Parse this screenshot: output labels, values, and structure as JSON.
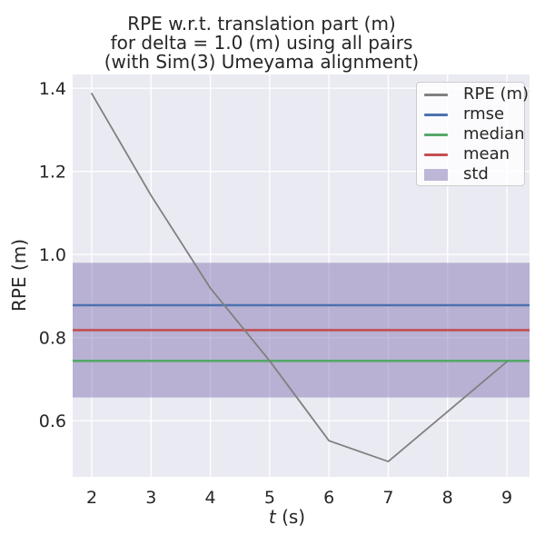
{
  "title": {
    "line1": "RPE w.r.t. translation part (m)",
    "line2": "for delta = 1.0 (m) using all pairs",
    "line3": "(with Sim(3) Umeyama alignment)"
  },
  "axes": {
    "ylabel": "RPE (m)",
    "xlabel_var": "t",
    "xlabel_unit": " (s)"
  },
  "chart_data": {
    "type": "line",
    "title": "RPE w.r.t. translation part (m) for delta = 1.0 (m) using all pairs (with Sim(3) Umeyama alignment)",
    "xlabel": "t (s)",
    "ylabel": "RPE (m)",
    "xlim": [
      1.678,
      9.383
    ],
    "ylim": [
      0.465,
      1.433
    ],
    "x_ticks": [
      2,
      3,
      4,
      5,
      6,
      7,
      8,
      9
    ],
    "y_ticks": [
      0.6,
      0.8,
      1.0,
      1.2,
      1.4
    ],
    "grid": true,
    "legend_position": "upper right",
    "series": [
      {
        "name": "RPE (m)",
        "color": "#808080",
        "x": [
          2,
          3,
          4,
          5,
          6,
          7,
          8,
          9
        ],
        "y": [
          1.387,
          1.142,
          0.919,
          0.744,
          0.552,
          0.502,
          0.622,
          0.742
        ]
      }
    ],
    "stat_lines": [
      {
        "name": "rmse",
        "color": "#4c72b0",
        "value": 0.878
      },
      {
        "name": "median",
        "color": "#55a868",
        "value": 0.744
      },
      {
        "name": "mean",
        "color": "#c44e52",
        "value": 0.818
      }
    ],
    "std_band": {
      "name": "std",
      "color": "#8172b2",
      "opacity": 0.48,
      "from": 0.656,
      "to": 0.98
    }
  },
  "legend": {
    "entries": [
      {
        "label": "RPE (m)",
        "color": "#808080",
        "swatch": "line"
      },
      {
        "label": "rmse",
        "color": "#4c72b0",
        "swatch": "line"
      },
      {
        "label": "median",
        "color": "#55a868",
        "swatch": "line"
      },
      {
        "label": "mean",
        "color": "#c44e52",
        "swatch": "line"
      },
      {
        "label": "std",
        "color": "rgba(129,114,178,0.5)",
        "swatch": "patch"
      }
    ]
  },
  "colors": {
    "figure_bg": "#ffffff",
    "axes_bg": "#eaeaf2",
    "grid": "#ffffff",
    "text": "#262626"
  }
}
